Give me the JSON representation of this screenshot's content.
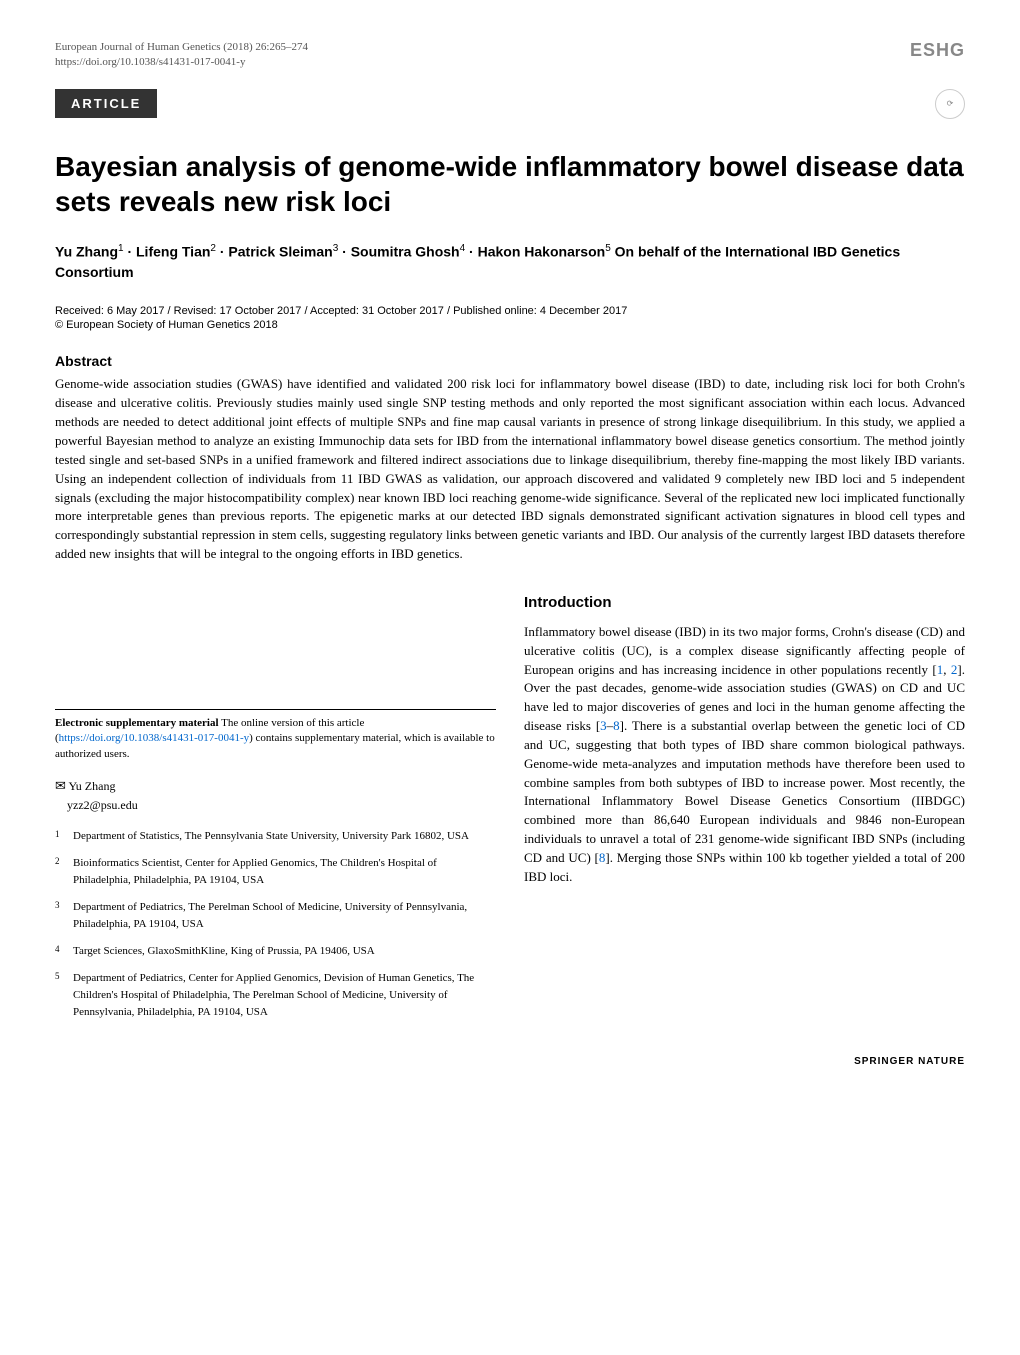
{
  "header": {
    "journal_line": "European Journal of Human Genetics (2018) 26:265–274",
    "doi_line": "https://doi.org/10.1038/s41431-017-0041-y",
    "logo_text": "ESHG",
    "article_label": "ARTICLE",
    "check_updates": "Check for updates"
  },
  "title": "Bayesian analysis of genome-wide inflammatory bowel disease data sets reveals new risk loci",
  "authors_html": "Yu Zhang<sup>1</sup> · Lifeng Tian<sup>2</sup> · Patrick Sleiman<sup>3</sup> · Soumitra Ghosh<sup>4</sup> · Hakon Hakonarson<sup>5</sup> On behalf of the International IBD Genetics Consortium",
  "dates": "Received: 6 May 2017 / Revised: 17 October 2017 / Accepted: 31 October 2017 / Published online: 4 December 2017",
  "copyright": "© European Society of Human Genetics 2018",
  "abstract": {
    "heading": "Abstract",
    "text": "Genome-wide association studies (GWAS) have identified and validated 200 risk loci for inflammatory bowel disease (IBD) to date, including risk loci for both Crohn's disease and ulcerative colitis. Previously studies mainly used single SNP testing methods and only reported the most significant association within each locus. Advanced methods are needed to detect additional joint effects of multiple SNPs and fine map causal variants in presence of strong linkage disequilibrium. In this study, we applied a powerful Bayesian method to analyze an existing Immunochip data sets for IBD from the international inflammatory bowel disease genetics consortium. The method jointly tested single and set-based SNPs in a unified framework and filtered indirect associations due to linkage disequilibrium, thereby fine-mapping the most likely IBD variants. Using an independent collection of individuals from 11 IBD GWAS as validation, our approach discovered and validated 9 completely new IBD loci and 5 independent signals (excluding the major histocompatibility complex) near known IBD loci reaching genome-wide significance. Several of the replicated new loci implicated functionally more interpretable genes than previous reports. The epigenetic marks at our detected IBD signals demonstrated significant activation signatures in blood cell types and correspondingly substantial repression in stem cells, suggesting regulatory links between genetic variants and IBD. Our analysis of the currently largest IBD datasets therefore added new insights that will be integral to the ongoing efforts in IBD genetics."
  },
  "intro": {
    "heading": "Introduction",
    "text_html": "Inflammatory bowel disease (IBD) in its two major forms, Crohn's disease (CD) and ulcerative colitis (UC), is a complex disease significantly affecting people of European origins and has increasing incidence in other populations recently [<a>1</a>, <a>2</a>]. Over the past decades, genome-wide association studies (GWAS) on CD and UC have led to major discoveries of genes and loci in the human genome affecting the disease risks [<a>3</a>–<a>8</a>]. There is a substantial overlap between the genetic loci of CD and UC, suggesting that both types of IBD share common biological pathways. Genome-wide meta-analyzes and imputation methods have therefore been used to combine samples from both subtypes of IBD to increase power. Most recently, the International Inflammatory Bowel Disease Genetics Consortium (IIBDGC) combined more than 86,640 European individuals and 9846 non-European individuals to unravel a total of 231 genome-wide significant IBD SNPs (including CD and UC) [<a>8</a>]. Merging those SNPs within 100 kb together yielded a total of 200 IBD loci."
  },
  "supp": {
    "label": "Electronic supplementary material",
    "text": " The online version of this article (",
    "link": "https://doi.org/10.1038/s41431-017-0041-y",
    "text2": ") contains supplementary material, which is available to authorized users."
  },
  "corr": {
    "name": "Yu Zhang",
    "email": "yzz2@psu.edu"
  },
  "affiliations": [
    {
      "num": "1",
      "text": "Department of Statistics, The Pennsylvania State University, University Park 16802, USA"
    },
    {
      "num": "2",
      "text": "Bioinformatics Scientist, Center for Applied Genomics, The Children's Hospital of Philadelphia, Philadelphia, PA 19104, USA"
    },
    {
      "num": "3",
      "text": "Department of Pediatrics, The Perelman School of Medicine, University of Pennsylvania, Philadelphia, PA 19104, USA"
    },
    {
      "num": "4",
      "text": "Target Sciences, GlaxoSmithKline, King of Prussia, PA 19406, USA"
    },
    {
      "num": "5",
      "text": "Department of Pediatrics, Center for Applied Genomics, Devision of Human Genetics, The Children's Hospital of Philadelphia, The Perelman School of Medicine, University of Pennsylvania, Philadelphia, PA 19104, USA"
    }
  ],
  "footer": "SPRINGER NATURE"
}
